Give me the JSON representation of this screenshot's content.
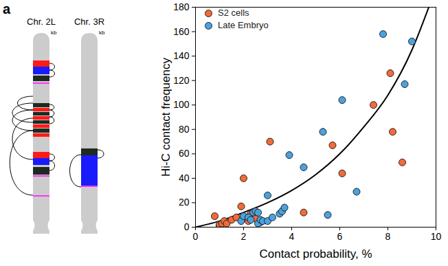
{
  "panel": "a",
  "diagram": {
    "chromosomes": [
      {
        "label": "Chr. 2L",
        "unit": "kb"
      },
      {
        "label": "Chr. 3R",
        "unit": "kb"
      }
    ]
  },
  "chart_data": {
    "type": "scatter",
    "x_label": "Contact probability, %",
    "y_label": "Hi-C contact frequency",
    "xlim": [
      0,
      10
    ],
    "xticks": [
      0,
      2,
      4,
      6,
      8,
      10
    ],
    "ylim": [
      0,
      180
    ],
    "yticks": [
      0,
      20,
      40,
      60,
      80,
      100,
      120,
      140,
      160,
      180
    ],
    "legend": "top-left",
    "series": [
      {
        "name": "S2 cells",
        "color": "#f26b38",
        "marker": "circle",
        "x": [
          0.8,
          1.0,
          1.0,
          1.1,
          1.2,
          1.3,
          1.5,
          1.7,
          1.9,
          2.0,
          2.1,
          2.2,
          2.3,
          2.5,
          2.7,
          3.1,
          4.5,
          5.7,
          6.1,
          7.4,
          8.1,
          8.2,
          8.6
        ],
        "values": [
          9,
          1,
          2,
          3,
          5,
          3,
          6,
          8,
          17,
          40,
          8,
          5,
          11,
          7,
          4,
          70,
          12,
          67,
          44,
          100,
          126,
          78,
          53
        ]
      },
      {
        "name": "Late Embryo",
        "color": "#4aa3df",
        "marker": "circle",
        "x": [
          1.9,
          2.0,
          2.2,
          2.3,
          2.4,
          2.5,
          2.6,
          2.6,
          2.7,
          2.8,
          3.0,
          3.0,
          3.2,
          3.5,
          3.6,
          3.7,
          3.9,
          4.5,
          5.3,
          5.5,
          6.1,
          6.7,
          7.8,
          8.7,
          9.0
        ],
        "values": [
          5,
          9,
          8,
          6,
          12,
          13,
          3,
          12,
          6,
          5,
          26,
          5,
          8,
          11,
          13,
          16,
          59,
          49,
          78,
          10,
          104,
          29,
          158,
          117,
          152
        ]
      },
      {
        "type": "line",
        "color": "#000000",
        "line_style": "solid",
        "x": [
          0,
          1,
          2,
          3,
          4,
          5,
          6,
          7,
          8,
          9,
          9.7
        ],
        "values": [
          0,
          5,
          12,
          20,
          30,
          43,
          60,
          82,
          108,
          145,
          180
        ]
      }
    ]
  }
}
